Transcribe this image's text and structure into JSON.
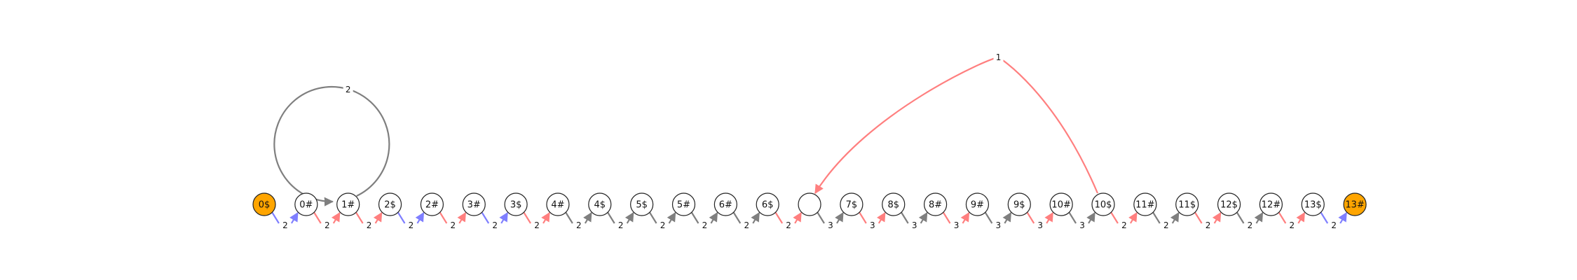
{
  "colors": {
    "red": "#ff7f7f",
    "blue": "#7f7fff",
    "gray": "#7f7f7f",
    "accent": "#ffa500",
    "node_default": "#ffffff",
    "node_border": "#222222"
  },
  "nodes": [
    {
      "label": "0$",
      "highlight": true
    },
    {
      "label": "0#",
      "highlight": false
    },
    {
      "label": "1#",
      "highlight": false
    },
    {
      "label": "2$",
      "highlight": false
    },
    {
      "label": "2#",
      "highlight": false
    },
    {
      "label": "3#",
      "highlight": false
    },
    {
      "label": "3$",
      "highlight": false
    },
    {
      "label": "4#",
      "highlight": false
    },
    {
      "label": "4$",
      "highlight": false
    },
    {
      "label": "5$",
      "highlight": false
    },
    {
      "label": "5#",
      "highlight": false
    },
    {
      "label": "6#",
      "highlight": false
    },
    {
      "label": "6$",
      "highlight": false
    },
    {
      "label": "",
      "highlight": false
    },
    {
      "label": "7$",
      "highlight": false
    },
    {
      "label": "8$",
      "highlight": false
    },
    {
      "label": "8#",
      "highlight": false
    },
    {
      "label": "9#",
      "highlight": false
    },
    {
      "label": "9$",
      "highlight": false
    },
    {
      "label": "10#",
      "highlight": false
    },
    {
      "label": "10$",
      "highlight": false
    },
    {
      "label": "11#",
      "highlight": false
    },
    {
      "label": "11$",
      "highlight": false
    },
    {
      "label": "12$",
      "highlight": false
    },
    {
      "label": "12#",
      "highlight": false
    },
    {
      "label": "13$",
      "highlight": false
    },
    {
      "label": "13#",
      "highlight": true
    }
  ],
  "chain_edges": [
    {
      "label": "2",
      "in_color": "blue",
      "out_color": "blue"
    },
    {
      "label": "2",
      "in_color": "red",
      "out_color": "red"
    },
    {
      "label": "2",
      "in_color": "red",
      "out_color": "red"
    },
    {
      "label": "2",
      "in_color": "blue",
      "out_color": "blue"
    },
    {
      "label": "2",
      "in_color": "red",
      "out_color": "red"
    },
    {
      "label": "2",
      "in_color": "blue",
      "out_color": "blue"
    },
    {
      "label": "2",
      "in_color": "red",
      "out_color": "red"
    },
    {
      "label": "2",
      "in_color": "gray",
      "out_color": "gray"
    },
    {
      "label": "2",
      "in_color": "gray",
      "out_color": "gray"
    },
    {
      "label": "2",
      "in_color": "gray",
      "out_color": "gray"
    },
    {
      "label": "2",
      "in_color": "gray",
      "out_color": "gray"
    },
    {
      "label": "2",
      "in_color": "gray",
      "out_color": "gray"
    },
    {
      "label": "2",
      "in_color": "red",
      "out_color": "red"
    },
    {
      "label": "3",
      "in_color": "gray",
      "out_color": "gray"
    },
    {
      "label": "3",
      "in_color": "red",
      "out_color": "red"
    },
    {
      "label": "3",
      "in_color": "gray",
      "out_color": "gray"
    },
    {
      "label": "3",
      "in_color": "red",
      "out_color": "red"
    },
    {
      "label": "3",
      "in_color": "gray",
      "out_color": "gray"
    },
    {
      "label": "3",
      "in_color": "red",
      "out_color": "red"
    },
    {
      "label": "3",
      "in_color": "gray",
      "out_color": "gray"
    },
    {
      "label": "2",
      "in_color": "red",
      "out_color": "red"
    },
    {
      "label": "2",
      "in_color": "gray",
      "out_color": "gray"
    },
    {
      "label": "2",
      "in_color": "red",
      "out_color": "red"
    },
    {
      "label": "2",
      "in_color": "gray",
      "out_color": "gray"
    },
    {
      "label": "2",
      "in_color": "red",
      "out_color": "red"
    },
    {
      "label": "2",
      "in_color": "blue",
      "out_color": "blue"
    }
  ],
  "self_loop": {
    "node": 2,
    "label": "2",
    "color": "gray"
  },
  "long_arc": {
    "from": 20,
    "to": 13,
    "label": "1",
    "color": "red"
  }
}
